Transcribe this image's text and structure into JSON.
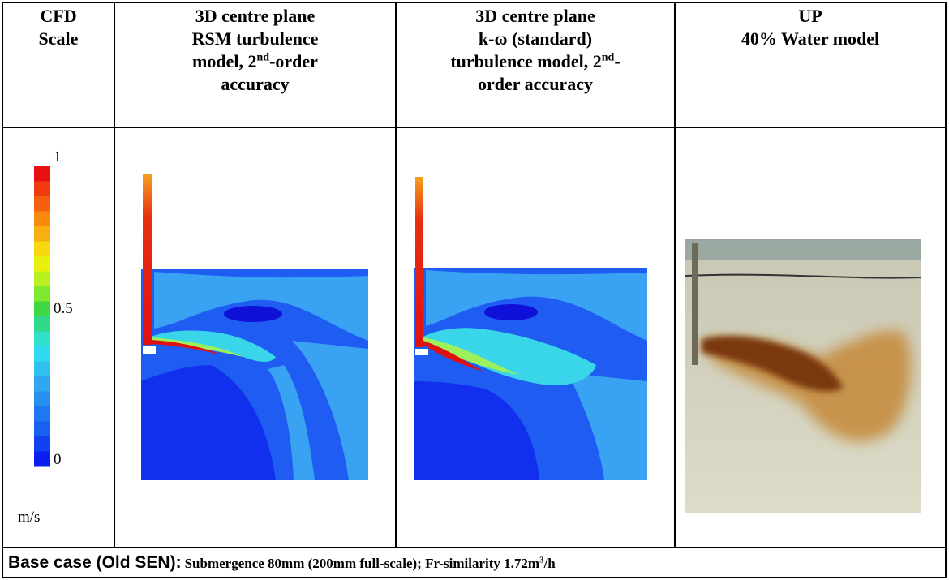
{
  "header": {
    "columns": [
      {
        "lines": [
          [
            {
              "text": "CFD"
            }
          ],
          [
            {
              "text": "Scale"
            }
          ]
        ]
      },
      {
        "lines": [
          [
            {
              "text": "3D centre plane"
            }
          ],
          [
            {
              "text": "RSM turbulence"
            }
          ],
          [
            {
              "text": "model, 2"
            },
            {
              "text": "nd",
              "sup": true
            },
            {
              "text": "-order"
            }
          ],
          [
            {
              "text": "accuracy"
            }
          ]
        ]
      },
      {
        "lines": [
          [
            {
              "text": "3D centre plane"
            }
          ],
          [
            {
              "text": "k-ω (standard)"
            }
          ],
          [
            {
              "text": "turbulence model, 2"
            },
            {
              "text": "nd",
              "sup": true
            },
            {
              "text": "-"
            }
          ],
          [
            {
              "text": "order accuracy"
            }
          ]
        ]
      },
      {
        "lines": [
          [
            {
              "text": "UP"
            }
          ],
          [
            {
              "text": "40% Water model"
            }
          ]
        ]
      }
    ]
  },
  "scale": {
    "labels": [
      "1",
      "0.5",
      "0"
    ],
    "unit": "m/s"
  },
  "footer": {
    "title": "Base case (Old SEN):",
    "text": "Submergence 80mm (200mm full-scale); Fr-similarity 1.72m",
    "sup": "3",
    "tail": "/h"
  }
}
